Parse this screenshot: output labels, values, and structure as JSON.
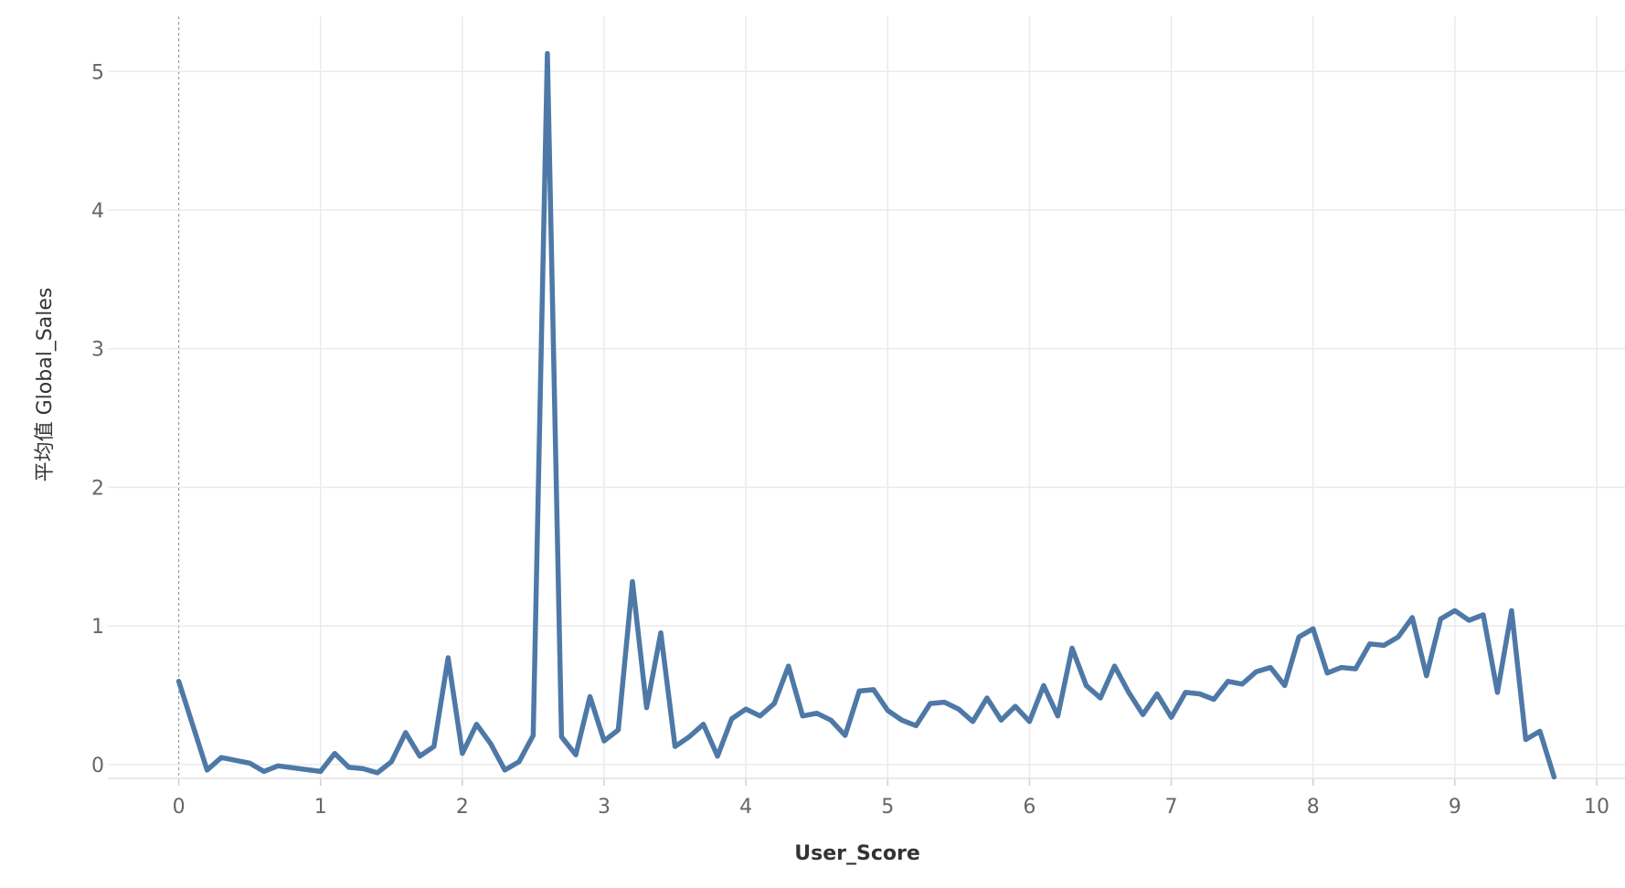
{
  "chart_data": {
    "type": "line",
    "title": "",
    "xlabel": "User_Score",
    "ylabel": "平均值 Global_Sales",
    "xlim": [
      -0.5,
      10.2
    ],
    "ylim": [
      -0.1,
      5.45
    ],
    "x_ticks": [
      "0",
      "1",
      "2",
      "3",
      "4",
      "5",
      "6",
      "7",
      "8",
      "9",
      "10"
    ],
    "y_ticks": [
      "0",
      "1",
      "2",
      "3",
      "4",
      "5"
    ],
    "grid": true,
    "colors": {
      "line": "#4e79a7",
      "grid": "#ebebeb",
      "zero_line": "#9b9b9b"
    },
    "series": [
      {
        "x": [
          0,
          0.2,
          0.3,
          0.5,
          0.6,
          0.7,
          1.0,
          1.1,
          1.2,
          1.3,
          1.4,
          1.5,
          1.6,
          1.7,
          1.8,
          1.9,
          2.0,
          2.1,
          2.2,
          2.3,
          2.4,
          2.5,
          2.6,
          2.7,
          2.8,
          2.9,
          3.0,
          3.1,
          3.2,
          3.3,
          3.4,
          3.5,
          3.6,
          3.7,
          3.8,
          3.9,
          4.0,
          4.1,
          4.2,
          4.3,
          4.4,
          4.5,
          4.6,
          4.7,
          4.8,
          4.9,
          5.0,
          5.1,
          5.2,
          5.3,
          5.4,
          5.5,
          5.6,
          5.7,
          5.8,
          5.9,
          6.0,
          6.1,
          6.2,
          6.3,
          6.4,
          6.5,
          6.6,
          6.7,
          6.8,
          6.9,
          7.0,
          7.1,
          7.2,
          7.3,
          7.4,
          7.5,
          7.6,
          7.7,
          7.8,
          7.9,
          8.0,
          8.1,
          8.2,
          8.3,
          8.4,
          8.5,
          8.6,
          8.7,
          8.8,
          8.9,
          9.0,
          9.1,
          9.2,
          9.3,
          9.4,
          9.5,
          9.6,
          9.7
        ],
        "values": [
          0.6,
          -0.04,
          0.05,
          0.01,
          -0.05,
          -0.01,
          -0.05,
          0.08,
          -0.02,
          -0.03,
          -0.06,
          0.02,
          0.23,
          0.06,
          0.13,
          0.77,
          0.08,
          0.29,
          0.15,
          -0.04,
          0.02,
          0.21,
          5.13,
          0.2,
          0.07,
          0.49,
          0.17,
          0.25,
          1.32,
          0.41,
          0.95,
          0.13,
          0.2,
          0.29,
          0.06,
          0.33,
          0.4,
          0.35,
          0.44,
          0.71,
          0.35,
          0.37,
          0.32,
          0.21,
          0.53,
          0.54,
          0.39,
          0.32,
          0.28,
          0.44,
          0.45,
          0.4,
          0.31,
          0.48,
          0.32,
          0.42,
          0.31,
          0.57,
          0.35,
          0.84,
          0.57,
          0.48,
          0.71,
          0.52,
          0.36,
          0.51,
          0.34,
          0.52,
          0.51,
          0.47,
          0.6,
          0.58,
          0.67,
          0.7,
          0.57,
          0.92,
          0.98,
          0.66,
          0.7,
          0.69,
          0.87,
          0.86,
          0.92,
          1.06,
          0.64,
          1.05,
          1.11,
          1.04,
          1.08,
          0.52,
          1.11,
          0.18,
          0.24,
          -0.09
        ]
      }
    ]
  }
}
